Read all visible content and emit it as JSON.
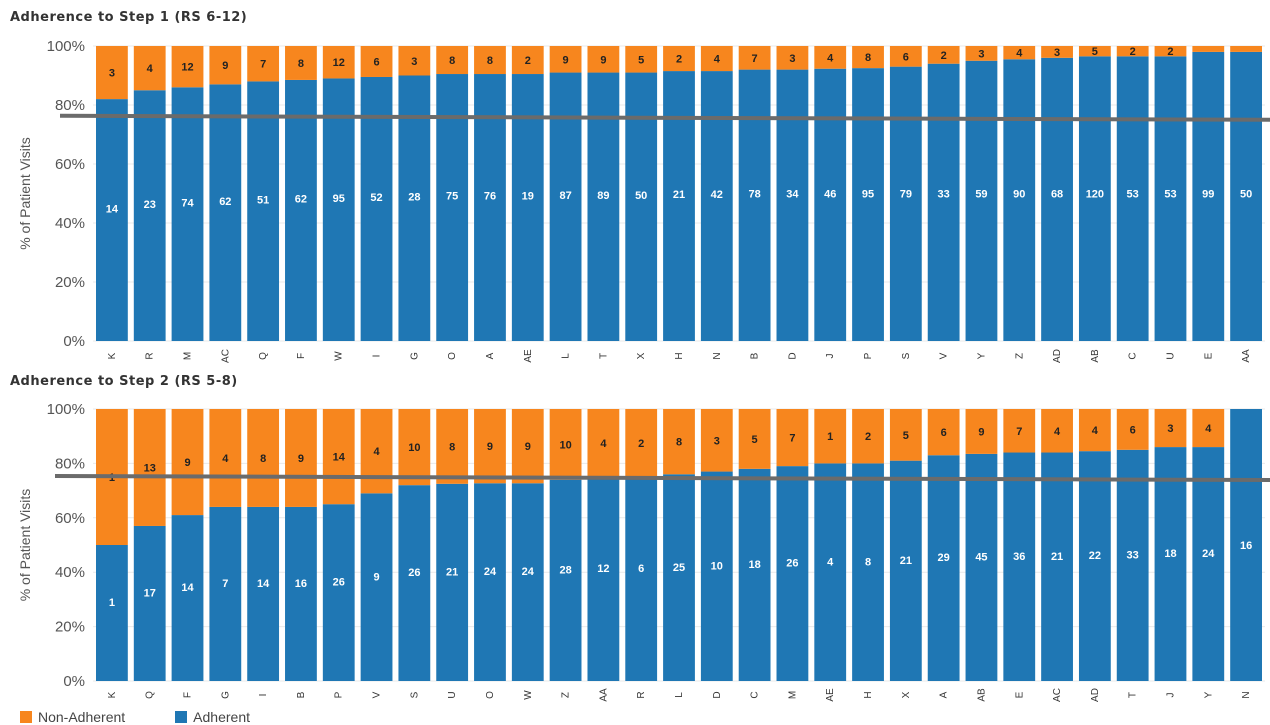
{
  "colors": {
    "non_adherent": "#f7861e",
    "adherent": "#1f77b4",
    "reference_line": "#6b6b6b",
    "grid": "#e9e9e9"
  },
  "legend": {
    "non_adherent": "Non-Adherent",
    "adherent": "Adherent"
  },
  "chart_data": [
    {
      "type": "bar",
      "stacked": true,
      "title": "Adherence to Step 1 (RS 6-12)",
      "ylabel": "% of Patient Visits",
      "ylim": [
        0,
        100
      ],
      "yticks": [
        "0%",
        "20%",
        "40%",
        "60%",
        "80%",
        "100%"
      ],
      "categories": [
        "K",
        "R",
        "M",
        "AC",
        "Q",
        "F",
        "W",
        "I",
        "G",
        "O",
        "A",
        "AE",
        "L",
        "T",
        "X",
        "H",
        "N",
        "B",
        "D",
        "J",
        "P",
        "S",
        "V",
        "Y",
        "Z",
        "AD",
        "AB",
        "C",
        "U",
        "E",
        "AA"
      ],
      "reference_line": 76,
      "series": [
        {
          "name": "Adherent",
          "percent": [
            82,
            85,
            86,
            87,
            88,
            88.5,
            89,
            89.5,
            90,
            90.5,
            90.5,
            90.5,
            91,
            91,
            91,
            91.5,
            91.5,
            92,
            92,
            92.3,
            92.5,
            93,
            94,
            95,
            95.5,
            96,
            96.5,
            96.5,
            96.5,
            98,
            98
          ],
          "labels": [
            "14",
            "23",
            "74",
            "62",
            "51",
            "62",
            "95",
            "52",
            "28",
            "75",
            "76",
            "19",
            "87",
            "89",
            "50",
            "21",
            "42",
            "78",
            "34",
            "46",
            "95",
            "79",
            "33",
            "59",
            "90",
            "68",
            "120",
            "53",
            "53",
            "99",
            "50"
          ]
        },
        {
          "name": "Non-Adherent",
          "percent": [
            18,
            15,
            14,
            13,
            12,
            11.5,
            11,
            10.5,
            10,
            9.5,
            9.5,
            9.5,
            9,
            9,
            9,
            8.5,
            8.5,
            8,
            8,
            7.7,
            7.5,
            7,
            6,
            5,
            4.5,
            4,
            3.5,
            3.5,
            3.5,
            2,
            2
          ],
          "labels": [
            "3",
            "4",
            "12",
            "9",
            "7",
            "8",
            "12",
            "6",
            "3",
            "8",
            "8",
            "2",
            "9",
            "9",
            "5",
            "2",
            "4",
            "7",
            "3",
            "4",
            "8",
            "6",
            "2",
            "3",
            "4",
            "3",
            "5",
            "2",
            "2",
            "",
            ""
          ]
        }
      ]
    },
    {
      "type": "bar",
      "stacked": true,
      "title": "Adherence to Step 2 (RS 5-8)",
      "ylabel": "% of Patient Visits",
      "ylim": [
        0,
        100
      ],
      "yticks": [
        "0%",
        "20%",
        "40%",
        "60%",
        "80%",
        "100%"
      ],
      "categories": [
        "K",
        "Q",
        "F",
        "G",
        "I",
        "B",
        "P",
        "V",
        "S",
        "U",
        "O",
        "W",
        "Z",
        "AA",
        "R",
        "L",
        "D",
        "C",
        "M",
        "AE",
        "H",
        "X",
        "A",
        "AB",
        "E",
        "AC",
        "AD",
        "T",
        "J",
        "Y",
        "N"
      ],
      "reference_line": 75,
      "series": [
        {
          "name": "Adherent",
          "percent": [
            50,
            57,
            61,
            64,
            64,
            64,
            65,
            69,
            72,
            72.5,
            72.7,
            72.7,
            74,
            75,
            75,
            76,
            77,
            78,
            79,
            80,
            80,
            81,
            83,
            83.5,
            84,
            84,
            84.5,
            85,
            86,
            86,
            100
          ],
          "labels": [
            "1",
            "17",
            "14",
            "7",
            "14",
            "16",
            "26",
            "9",
            "26",
            "21",
            "24",
            "24",
            "28",
            "12",
            "6",
            "25",
            "10",
            "18",
            "26",
            "4",
            "8",
            "21",
            "29",
            "45",
            "36",
            "21",
            "22",
            "33",
            "18",
            "24",
            "16"
          ]
        },
        {
          "name": "Non-Adherent",
          "percent": [
            50,
            43,
            39,
            36,
            36,
            36,
            35,
            31,
            28,
            27.5,
            27.3,
            27.3,
            26,
            25,
            25,
            24,
            23,
            22,
            21,
            20,
            20,
            19,
            17,
            16.5,
            16,
            16,
            15.5,
            15,
            14,
            14,
            0
          ],
          "labels": [
            "1",
            "13",
            "9",
            "4",
            "8",
            "9",
            "14",
            "4",
            "10",
            "8",
            "9",
            "9",
            "10",
            "4",
            "2",
            "8",
            "3",
            "5",
            "7",
            "1",
            "2",
            "5",
            "6",
            "9",
            "7",
            "4",
            "4",
            "6",
            "3",
            "4",
            ""
          ]
        }
      ]
    }
  ]
}
